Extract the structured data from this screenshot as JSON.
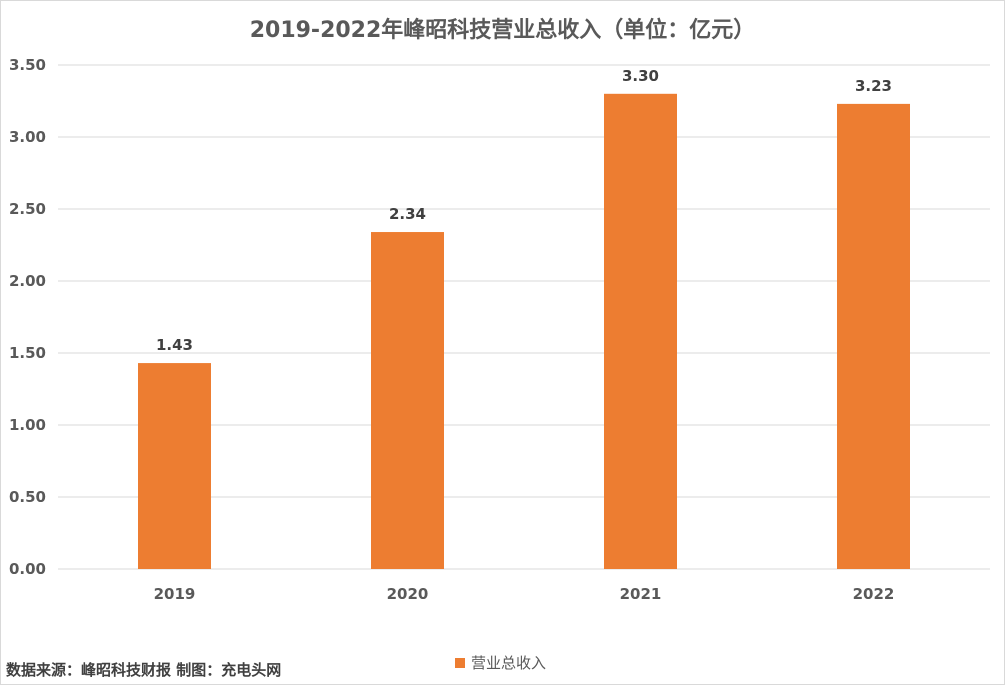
{
  "source_note": "数据来源：峰昭科技财报 制图：充电头网",
  "chart_data": {
    "type": "bar",
    "title": "2019-2022年峰昭科技营业总收入（单位：亿元）",
    "categories": [
      "2019",
      "2020",
      "2021",
      "2022"
    ],
    "series": [
      {
        "name": "营业总收入",
        "values": [
          1.43,
          2.34,
          3.3,
          3.23
        ],
        "color": "#ed7d31"
      }
    ],
    "data_labels": [
      "1.43",
      "2.34",
      "3.30",
      "3.23"
    ],
    "ylim": [
      0,
      3.5
    ],
    "yticks": [
      0,
      0.5,
      1.0,
      1.5,
      2.0,
      2.5,
      3.0,
      3.5
    ],
    "ytick_labels": [
      "0.00",
      "0.50",
      "1.00",
      "1.50",
      "2.00",
      "2.50",
      "3.00",
      "3.50"
    ],
    "grid": true,
    "legend_position": "bottom-center",
    "gridline_color": "#d9d9d9"
  }
}
